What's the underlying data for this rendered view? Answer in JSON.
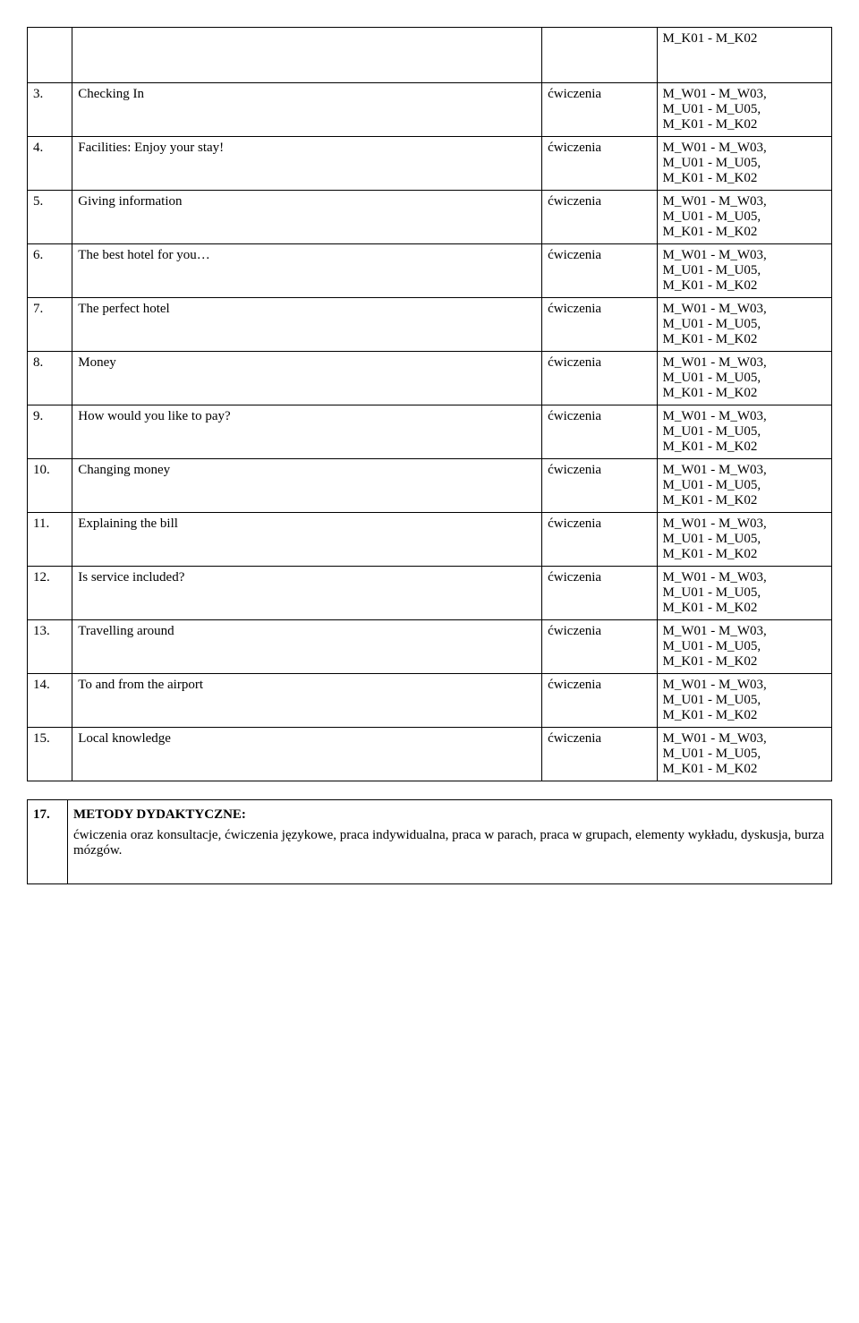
{
  "codes": {
    "full": "M_W01 - M_W03,\nM_U01 - M_U05,\nM_K01 - M_K02",
    "partial": "M_K01 - M_K02"
  },
  "typeLabel": "ćwiczenia",
  "rows": [
    {
      "num": "3.",
      "desc": "Checking In"
    },
    {
      "num": "4.",
      "desc": "Facilities: Enjoy your stay!"
    },
    {
      "num": "5.",
      "desc": "Giving information"
    },
    {
      "num": "6.",
      "desc": "The best hotel for you…"
    },
    {
      "num": "7.",
      "desc": "The perfect hotel"
    },
    {
      "num": "8.",
      "desc": "Money"
    },
    {
      "num": "9.",
      "desc": "How would you like to pay?"
    },
    {
      "num": "10.",
      "desc": "Changing money"
    },
    {
      "num": "11.",
      "desc": "Explaining the bill"
    },
    {
      "num": "12.",
      "desc": "Is service included?"
    },
    {
      "num": "13.",
      "desc": "Travelling around"
    },
    {
      "num": "14.",
      "desc": " To and from the airport"
    },
    {
      "num": "15.",
      "desc": "Local knowledge"
    }
  ],
  "section": {
    "num": "17.",
    "title": "METODY DYDAKTYCZNE:",
    "body": "ćwiczenia oraz konsultacje, ćwiczenia językowe, praca indywidualna, praca w parach, praca w grupach, elementy wykładu, dyskusja, burza mózgów."
  }
}
